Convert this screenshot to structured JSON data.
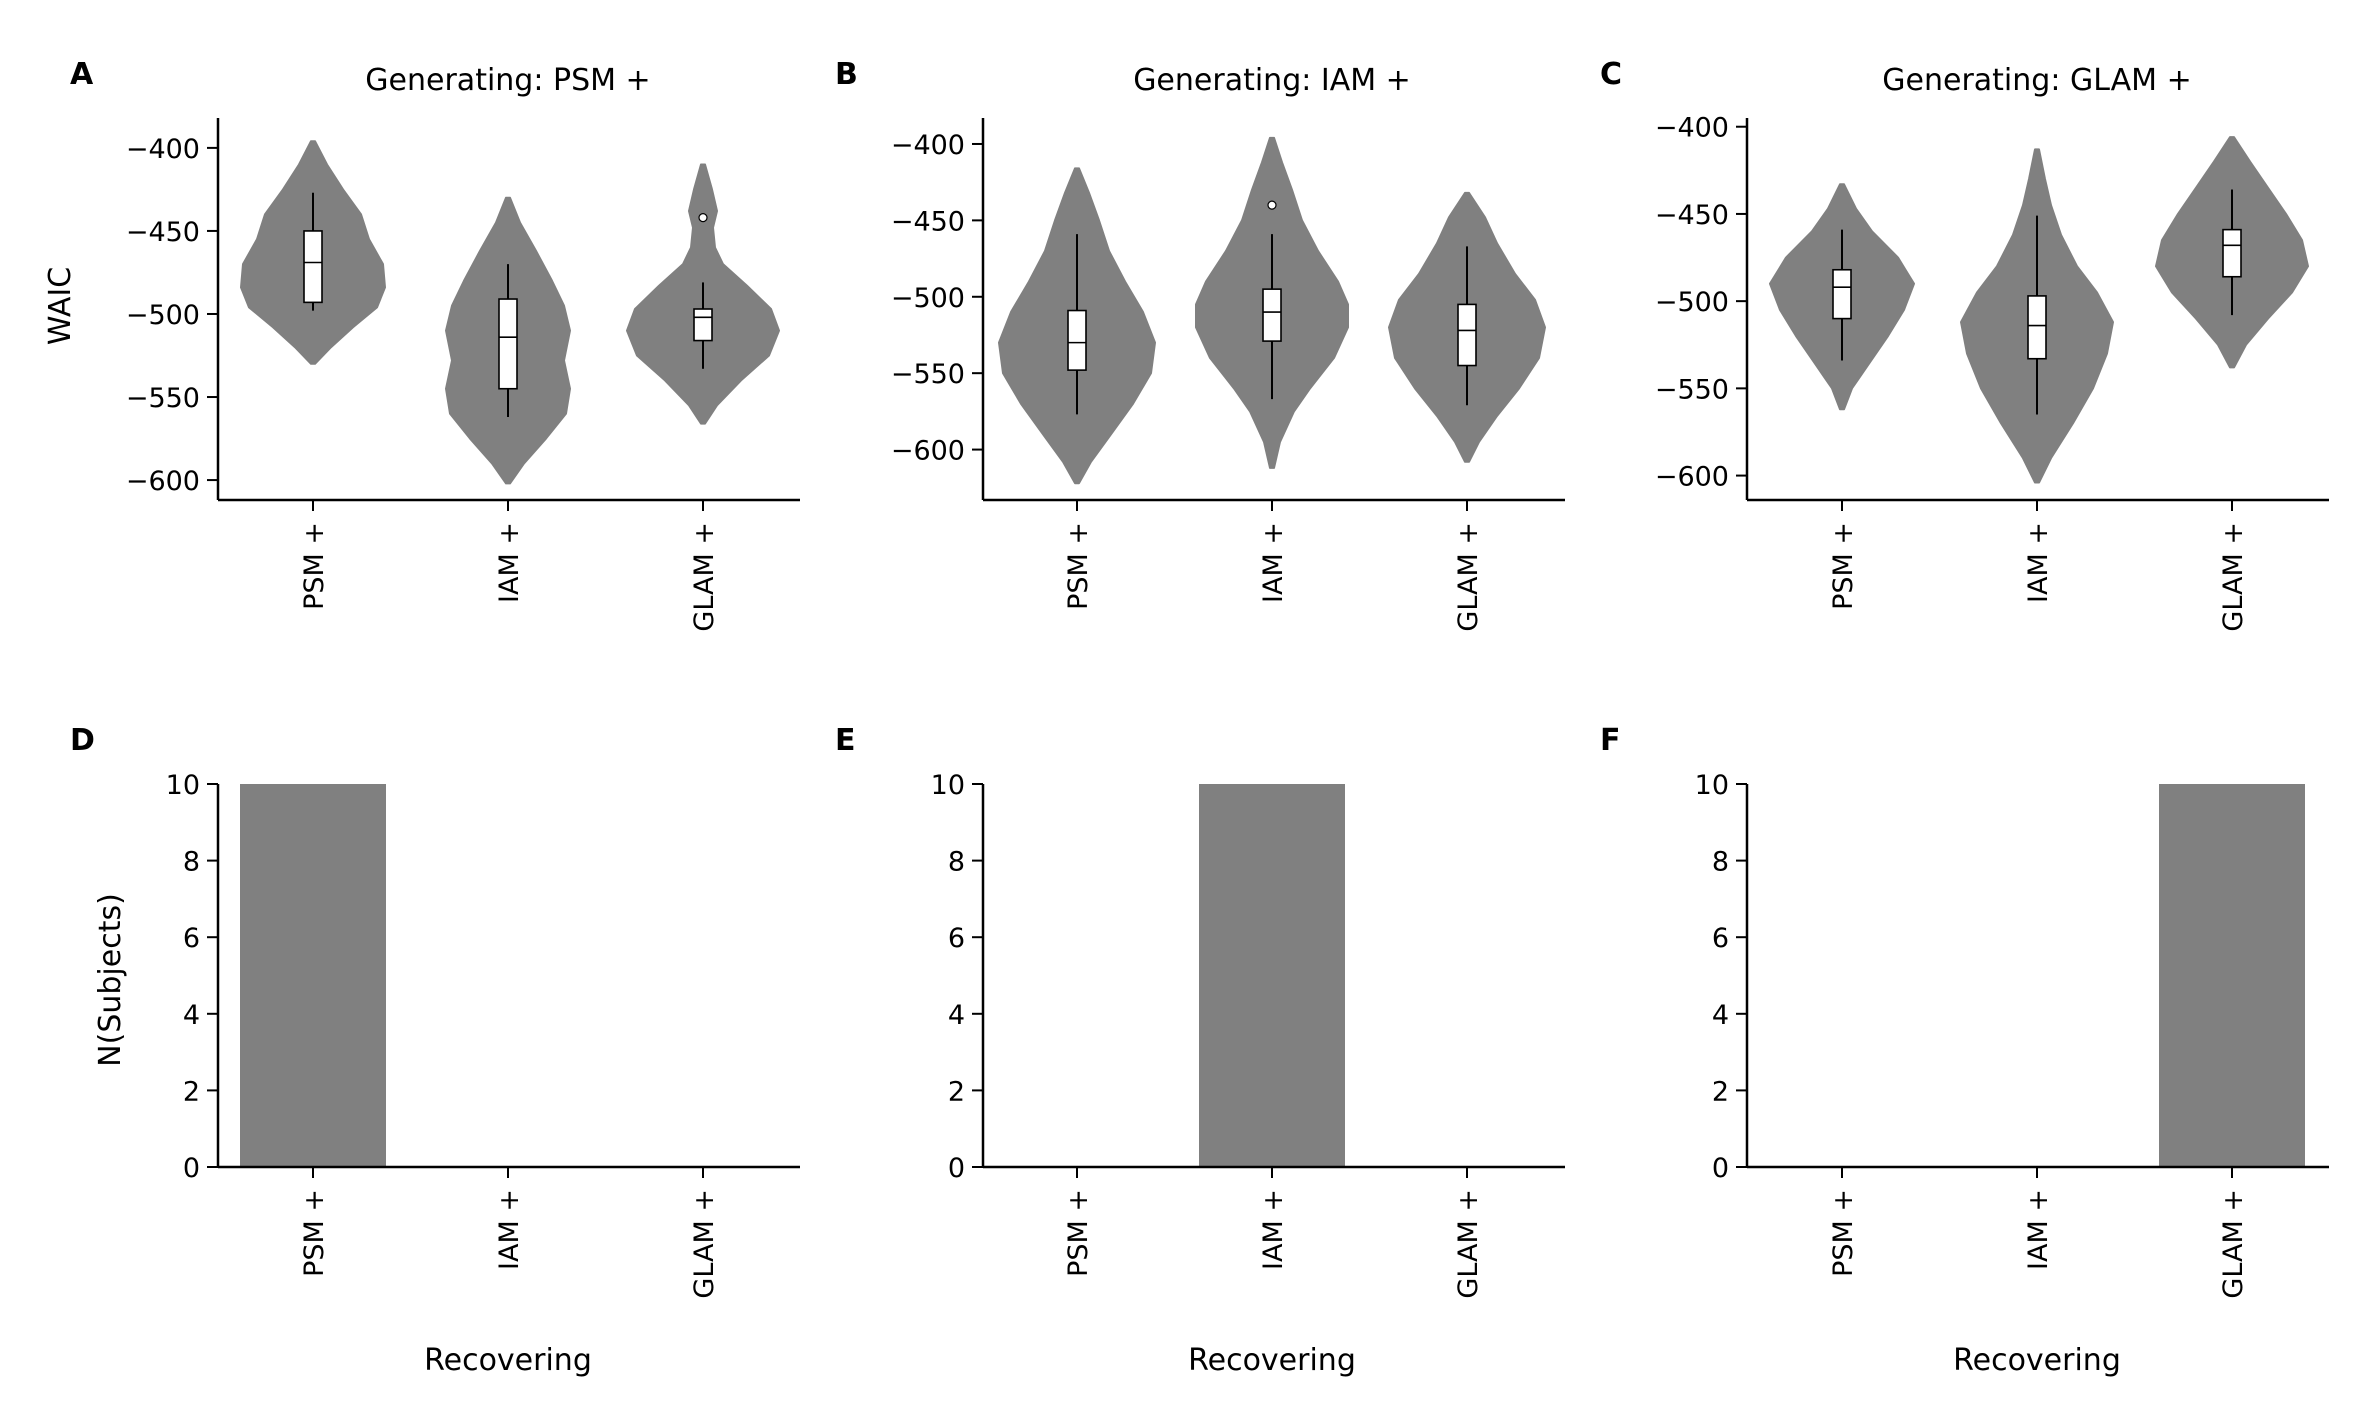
{
  "colors": {
    "violin": "#808080",
    "bar": "#808080",
    "box": "#ffffff",
    "axis": "#000000"
  },
  "chart_data": [
    {
      "panel": "A",
      "type": "violin",
      "title": "Generating: PSM +",
      "ylabel": "WAIC",
      "xlabel": "",
      "ylim": [
        -612,
        -382
      ],
      "yticks": [
        -400,
        -450,
        -500,
        -550,
        -600
      ],
      "categories": [
        "PSM +",
        "IAM +",
        "GLAM +"
      ],
      "series": [
        {
          "category": "PSM +",
          "violin": [
            [
              -530,
              2
            ],
            [
              -520,
              18
            ],
            [
              -508,
              40
            ],
            [
              -496,
              64
            ],
            [
              -484,
              72
            ],
            [
              -470,
              70
            ],
            [
              -455,
              56
            ],
            [
              -440,
              48
            ],
            [
              -425,
              30
            ],
            [
              -410,
              14
            ],
            [
              -396,
              2
            ]
          ],
          "box": {
            "whislo": -498,
            "q1": -493,
            "med": -469,
            "q3": -450,
            "whishi": -427
          }
        },
        {
          "category": "IAM +",
          "violin": [
            [
              -602,
              2
            ],
            [
              -590,
              16
            ],
            [
              -575,
              38
            ],
            [
              -560,
              58
            ],
            [
              -545,
              62
            ],
            [
              -528,
              56
            ],
            [
              -510,
              62
            ],
            [
              -495,
              56
            ],
            [
              -480,
              44
            ],
            [
              -462,
              28
            ],
            [
              -445,
              12
            ],
            [
              -430,
              2
            ]
          ],
          "box": {
            "whislo": -562,
            "q1": -545,
            "med": -514,
            "q3": -491,
            "whishi": -470
          }
        },
        {
          "category": "GLAM +",
          "violin": [
            [
              -566,
              2
            ],
            [
              -555,
              14
            ],
            [
              -540,
              38
            ],
            [
              -525,
              66
            ],
            [
              -510,
              76
            ],
            [
              -497,
              68
            ],
            [
              -483,
              44
            ],
            [
              -470,
              20
            ],
            [
              -460,
              12
            ],
            [
              -448,
              10
            ],
            [
              -438,
              14
            ],
            [
              -425,
              9
            ],
            [
              -410,
              2
            ]
          ],
          "box": {
            "whislo": -533,
            "q1": -516,
            "med": -502,
            "q3": -497,
            "whishi": -481
          },
          "outliers": [
            -442
          ]
        }
      ]
    },
    {
      "panel": "B",
      "type": "violin",
      "title": "Generating: IAM +",
      "ylabel": "",
      "xlabel": "",
      "ylim": [
        -633,
        -383
      ],
      "yticks": [
        -400,
        -450,
        -500,
        -550,
        -600
      ],
      "categories": [
        "PSM +",
        "IAM +",
        "GLAM +"
      ],
      "series": [
        {
          "category": "PSM +",
          "violin": [
            [
              -622,
              2
            ],
            [
              -608,
              14
            ],
            [
              -590,
              34
            ],
            [
              -570,
              56
            ],
            [
              -550,
              74
            ],
            [
              -530,
              78
            ],
            [
              -510,
              66
            ],
            [
              -490,
              48
            ],
            [
              -470,
              32
            ],
            [
              -450,
              22
            ],
            [
              -432,
              12
            ],
            [
              -416,
              2
            ]
          ],
          "box": {
            "whislo": -577,
            "q1": -548,
            "med": -530,
            "q3": -509,
            "whishi": -459
          }
        },
        {
          "category": "IAM +",
          "violin": [
            [
              -612,
              2
            ],
            [
              -595,
              8
            ],
            [
              -575,
              22
            ],
            [
              -560,
              38
            ],
            [
              -540,
              62
            ],
            [
              -520,
              76
            ],
            [
              -505,
              76
            ],
            [
              -490,
              66
            ],
            [
              -470,
              46
            ],
            [
              -450,
              30
            ],
            [
              -430,
              20
            ],
            [
              -412,
              10
            ],
            [
              -396,
              2
            ]
          ],
          "box": {
            "whislo": -567,
            "q1": -529,
            "med": -510,
            "q3": -495,
            "whishi": -459
          },
          "outliers": [
            -440
          ]
        },
        {
          "category": "GLAM +",
          "violin": [
            [
              -608,
              2
            ],
            [
              -595,
              12
            ],
            [
              -578,
              30
            ],
            [
              -560,
              52
            ],
            [
              -540,
              72
            ],
            [
              -520,
              78
            ],
            [
              -502,
              68
            ],
            [
              -485,
              48
            ],
            [
              -465,
              30
            ],
            [
              -448,
              18
            ],
            [
              -432,
              2
            ]
          ],
          "box": {
            "whislo": -571,
            "q1": -545,
            "med": -522,
            "q3": -505,
            "whishi": -467
          }
        }
      ]
    },
    {
      "panel": "C",
      "type": "violin",
      "title": "Generating: GLAM +",
      "ylabel": "",
      "xlabel": "",
      "ylim": [
        -614,
        -395
      ],
      "yticks": [
        -400,
        -450,
        -500,
        -550,
        -600
      ],
      "categories": [
        "PSM +",
        "IAM +",
        "GLAM +"
      ],
      "series": [
        {
          "category": "PSM +",
          "violin": [
            [
              -562,
              2
            ],
            [
              -550,
              10
            ],
            [
              -535,
              28
            ],
            [
              -520,
              46
            ],
            [
              -505,
              62
            ],
            [
              -490,
              72
            ],
            [
              -475,
              56
            ],
            [
              -460,
              30
            ],
            [
              -447,
              14
            ],
            [
              -433,
              2
            ]
          ],
          "box": {
            "whislo": -534,
            "q1": -510,
            "med": -492,
            "q3": -482,
            "whishi": -459
          }
        },
        {
          "category": "IAM +",
          "violin": [
            [
              -604,
              2
            ],
            [
              -590,
              14
            ],
            [
              -570,
              36
            ],
            [
              -550,
              56
            ],
            [
              -530,
              70
            ],
            [
              -512,
              76
            ],
            [
              -495,
              60
            ],
            [
              -480,
              40
            ],
            [
              -462,
              24
            ],
            [
              -445,
              14
            ],
            [
              -430,
              8
            ],
            [
              -413,
              2
            ]
          ],
          "box": {
            "whislo": -565,
            "q1": -533,
            "med": -514,
            "q3": -497,
            "whishi": -451
          }
        },
        {
          "category": "GLAM +",
          "violin": [
            [
              -538,
              2
            ],
            [
              -525,
              14
            ],
            [
              -510,
              36
            ],
            [
              -495,
              60
            ],
            [
              -480,
              76
            ],
            [
              -465,
              70
            ],
            [
              -450,
              54
            ],
            [
              -435,
              36
            ],
            [
              -420,
              18
            ],
            [
              -406,
              2
            ]
          ],
          "box": {
            "whislo": -508,
            "q1": -486,
            "med": -468,
            "q3": -459,
            "whishi": -436
          }
        }
      ]
    },
    {
      "panel": "D",
      "type": "bar",
      "title": "",
      "ylabel": "N(Subjects)",
      "xlabel": "Recovering",
      "ylim": [
        0,
        10
      ],
      "yticks": [
        0,
        2,
        4,
        6,
        8,
        10
      ],
      "categories": [
        "PSM +",
        "IAM +",
        "GLAM +"
      ],
      "values": [
        10,
        0,
        0
      ]
    },
    {
      "panel": "E",
      "type": "bar",
      "title": "",
      "ylabel": "",
      "xlabel": "Recovering",
      "ylim": [
        0,
        10
      ],
      "yticks": [
        0,
        2,
        4,
        6,
        8,
        10
      ],
      "categories": [
        "PSM +",
        "IAM +",
        "GLAM +"
      ],
      "values": [
        0,
        10,
        0
      ]
    },
    {
      "panel": "F",
      "type": "bar",
      "title": "",
      "ylabel": "",
      "xlabel": "Recovering",
      "ylim": [
        0,
        10
      ],
      "yticks": [
        0,
        2,
        4,
        6,
        8,
        10
      ],
      "categories": [
        "PSM +",
        "IAM +",
        "GLAM +"
      ],
      "values": [
        0,
        0,
        10
      ]
    }
  ]
}
